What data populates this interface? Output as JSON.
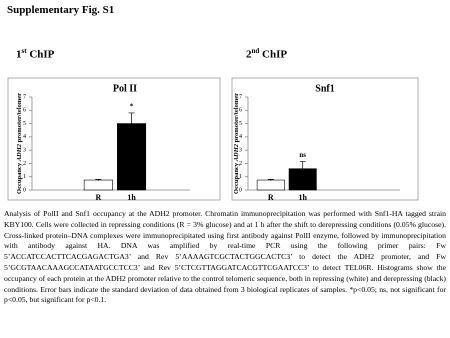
{
  "header": {
    "title": "Supplementary Fig. S1"
  },
  "panels": [
    {
      "number": "1",
      "suffix": "st",
      "text": "ChIP"
    },
    {
      "number": "2",
      "suffix": "nd",
      "text": "ChIP"
    }
  ],
  "chart_data": [
    {
      "type": "bar",
      "title": "Pol II",
      "ylabel": [
        "Occupancy ",
        "ADH2",
        " promoter/telomer"
      ],
      "categories": [
        "R",
        "1h"
      ],
      "values": [
        0.75,
        5.0
      ],
      "errors": [
        0.05,
        0.8
      ],
      "colors": [
        "#ffffff",
        "#000000"
      ],
      "annotations": [
        null,
        "*"
      ],
      "ylim": [
        0,
        7
      ],
      "yticks": [
        0,
        1,
        2,
        3,
        4,
        5,
        6,
        7
      ]
    },
    {
      "type": "bar",
      "title": "Snf1",
      "ylabel": [
        "Occupancy ",
        "ADH2",
        " promoter/telomer"
      ],
      "categories": [
        "R",
        "1h"
      ],
      "values": [
        0.75,
        1.6
      ],
      "errors": [
        0.05,
        0.55
      ],
      "colors": [
        "#ffffff",
        "#000000"
      ],
      "annotations": [
        null,
        "ns"
      ],
      "ylim": [
        0,
        7
      ],
      "yticks": [
        0,
        1,
        2,
        3,
        4,
        5,
        6,
        7
      ]
    }
  ],
  "caption": "Analysis of PolII and Snf1 occupancy at the ADH2 promoter. Chromatin immunoprecipitation was performed with Snf1-HA tagged strain KBY100. Cells were collected in repressing conditions (R = 3% glucose) and at 1 h after the shift to derepressing conditions (0.05% glucose). Cross-linked protein–DNA complexes were immunoprecipitated using first antibody against PolII enzyme, followed by immunoprecipitation with antibody against HA. DNA was amplified by real-time PCR using the following primer pairs: Fw 5’ACCATCCACTTCACGAGACTGA3’ and Rev 5’AAAAGTCGCTACTGGCACTC3’ to detect the ADH2 promoter, and Fw 5’GCGTAACAAAGCCATAATGCCTCC3’ and Rev 5’CTCGTTAGGATCACGTTCGAATCC3’ to detect TEL06R. Histograms show the occupancy of each protein at the ADH2 promoter relative to the control telomeric sequence, both in repressing (white) and derepressing (black) conditions. Error bars indicate the standard deviation of data obtained from 3 biological replicates of samples. *p<0.05; ns, not significant for p<0.05, but significant for p<0.1."
}
